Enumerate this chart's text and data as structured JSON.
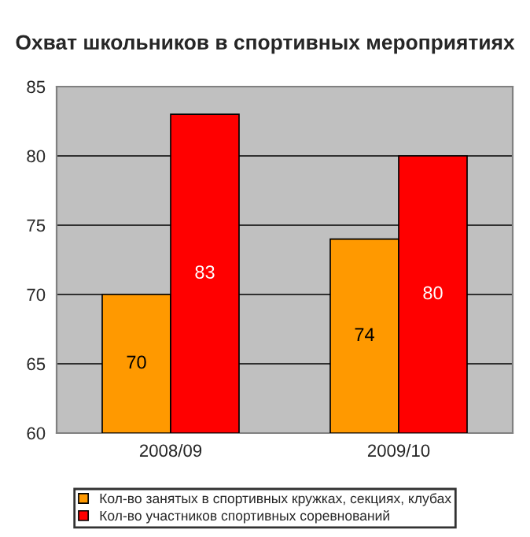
{
  "chart_data": {
    "type": "bar",
    "title": "Охват школьников в спортивных мероприятиях",
    "categories": [
      "2008/09",
      "2009/10"
    ],
    "series": [
      {
        "name": "Кол-во занятых в спортивных кружках, секциях, клубах",
        "color": "#ff9900",
        "values": [
          70,
          74
        ]
      },
      {
        "name": "Кол-во участников спортивных соревнований",
        "color": "#ff0000",
        "values": [
          83,
          80
        ]
      }
    ],
    "ylim": [
      60,
      85
    ],
    "yticks": [
      60,
      65,
      70,
      75,
      80,
      85
    ],
    "grid": "y",
    "legend": "bottom",
    "data_labels": true
  }
}
